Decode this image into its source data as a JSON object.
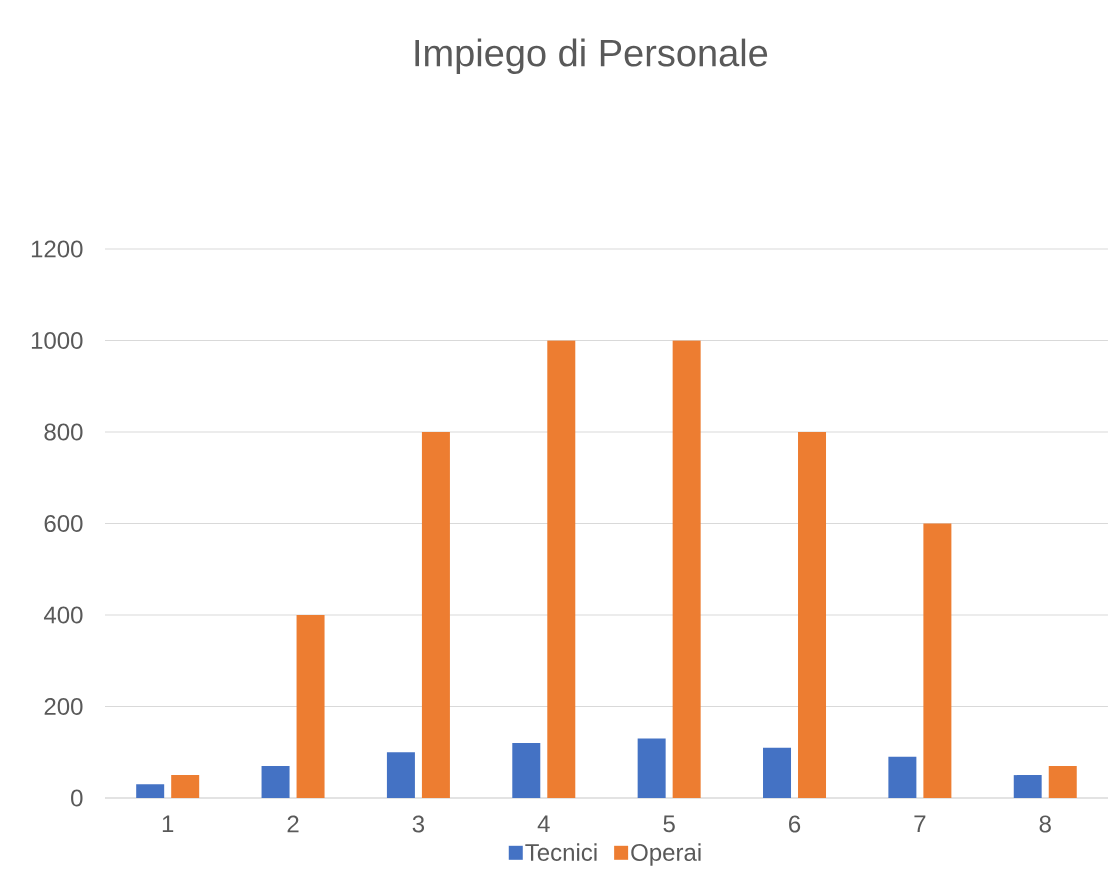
{
  "chart_data": {
    "type": "bar",
    "title": "Impiego di Personale",
    "categories": [
      "1",
      "2",
      "3",
      "4",
      "5",
      "6",
      "7",
      "8"
    ],
    "series": [
      {
        "name": "Tecnici",
        "color": "#4472c4",
        "values": [
          30,
          70,
          100,
          120,
          130,
          110,
          90,
          50
        ]
      },
      {
        "name": "Operai",
        "color": "#ed7d31",
        "values": [
          50,
          400,
          800,
          1000,
          1000,
          800,
          600,
          70
        ]
      }
    ],
    "ylim": [
      0,
      1200
    ],
    "yticks": [
      0,
      200,
      400,
      600,
      800,
      1000,
      1200
    ],
    "grid": "y",
    "legend": "bottom"
  }
}
